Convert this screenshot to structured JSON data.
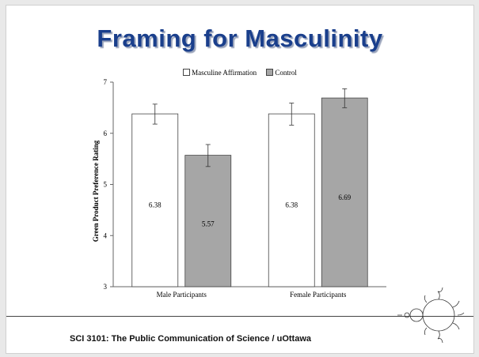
{
  "slide": {
    "title": "Framing for Masculinity",
    "footer": "SCI 3101: The Public Communication of Science / uOttawa"
  },
  "chart_data": {
    "type": "bar",
    "categories": [
      "Male Participants",
      "Female Participants"
    ],
    "series": [
      {
        "name": "Masculine Affirmation",
        "values": [
          6.38,
          6.38
        ],
        "error_low": [
          6.18,
          6.16
        ],
        "error_high": [
          6.57,
          6.59
        ],
        "labels": [
          "6.38",
          "6.38"
        ],
        "color": "#ffffff"
      },
      {
        "name": "Control",
        "values": [
          5.57,
          6.69
        ],
        "error_low": [
          5.35,
          6.5
        ],
        "error_high": [
          5.78,
          6.87
        ],
        "labels": [
          "5.57",
          "6.69"
        ],
        "color": "#a6a6a6"
      }
    ],
    "xlabel": "",
    "ylabel": "Green Product Preference Rating",
    "ylim": [
      3,
      7
    ],
    "yticks": [
      "3",
      "4",
      "5",
      "6",
      "7"
    ],
    "grid": false,
    "legend_position": "top"
  }
}
